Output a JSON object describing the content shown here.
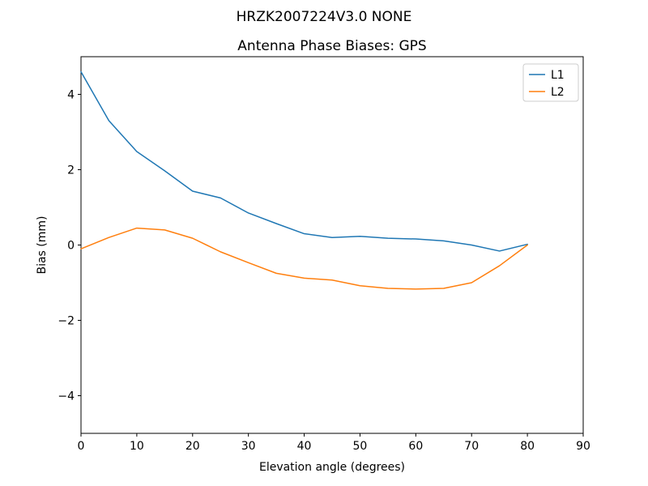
{
  "chart_data": {
    "type": "line",
    "suptitle": "HRZK2007224V3.0 NONE",
    "title": "Antenna Phase Biases: GPS",
    "xlabel": "Elevation angle (degrees)",
    "ylabel": "Bias (mm)",
    "xlim": [
      0,
      90
    ],
    "ylim": [
      -5,
      5
    ],
    "xticks": [
      0,
      10,
      20,
      30,
      40,
      50,
      60,
      70,
      80,
      90
    ],
    "yticks": [
      -4,
      -2,
      0,
      2,
      4
    ],
    "grid": false,
    "legend_position": "upper right",
    "x": [
      0,
      5,
      10,
      15,
      20,
      25,
      30,
      35,
      40,
      45,
      50,
      55,
      60,
      65,
      70,
      75,
      80
    ],
    "series": [
      {
        "name": "L1",
        "color": "#1f77b4",
        "values": [
          4.6,
          3.3,
          2.48,
          1.97,
          1.43,
          1.25,
          0.85,
          0.57,
          0.3,
          0.2,
          0.23,
          0.18,
          0.16,
          0.11,
          0.0,
          -0.16,
          0.02
        ]
      },
      {
        "name": "L2",
        "color": "#ff7f0e",
        "values": [
          -0.1,
          0.2,
          0.45,
          0.4,
          0.18,
          -0.18,
          -0.47,
          -0.75,
          -0.88,
          -0.93,
          -1.08,
          -1.15,
          -1.17,
          -1.15,
          -1.0,
          -0.55,
          0.0
        ]
      }
    ],
    "colors": {
      "axes": "#000000",
      "legend_border": "#cccccc",
      "background": "#ffffff"
    }
  }
}
